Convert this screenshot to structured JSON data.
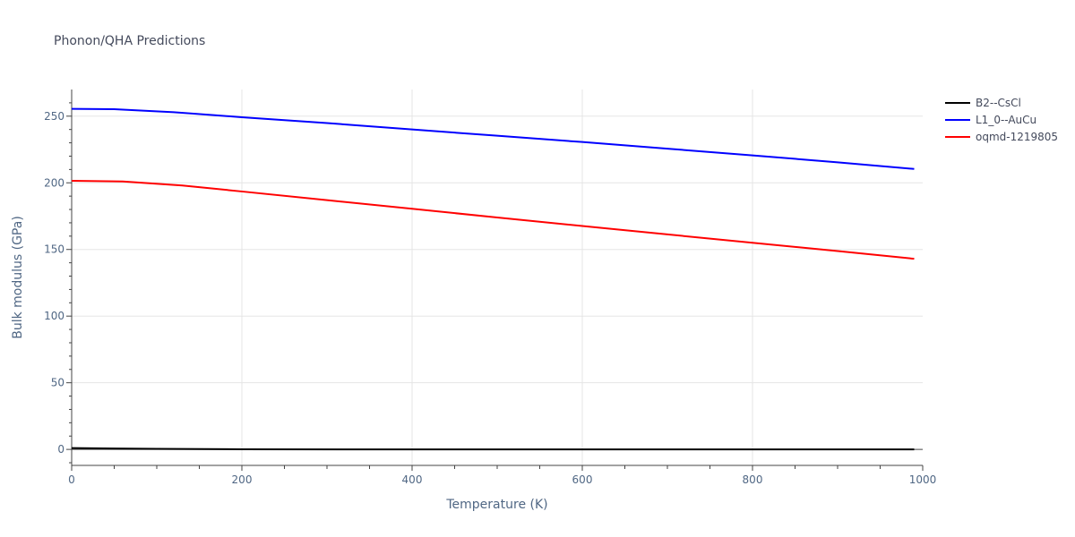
{
  "chart_data": {
    "type": "line",
    "title": "Phonon/QHA Predictions",
    "xlabel": "Temperature (K)",
    "ylabel": "Bulk modulus (GPa)",
    "xlim": [
      0,
      1000
    ],
    "ylim": [
      -12,
      270
    ],
    "xticks": [
      0,
      200,
      400,
      600,
      800,
      1000
    ],
    "yticks": [
      0,
      50,
      100,
      150,
      200,
      250
    ],
    "grid": true,
    "legend_position": "top-right",
    "series": [
      {
        "name": "B2--CsCl",
        "color": "#000000",
        "x": [
          0,
          50,
          100,
          200,
          400,
          600,
          800,
          990
        ],
        "y": [
          1.0,
          0.7,
          0.4,
          0.1,
          0.0,
          0.0,
          0.0,
          0.0
        ]
      },
      {
        "name": "L1_0--AuCu",
        "color": "#0000ff",
        "x": [
          0,
          50,
          120,
          200,
          300,
          400,
          500,
          600,
          700,
          800,
          900,
          990
        ],
        "y": [
          255.5,
          255.2,
          253.0,
          249.2,
          244.8,
          240.0,
          235.3,
          230.6,
          225.6,
          220.6,
          215.4,
          210.4
        ]
      },
      {
        "name": "oqmd-1219805",
        "color": "#ff0000",
        "x": [
          0,
          60,
          130,
          200,
          300,
          400,
          500,
          600,
          700,
          800,
          900,
          990
        ],
        "y": [
          201.5,
          201.0,
          198.0,
          193.5,
          187.0,
          180.5,
          174.0,
          167.6,
          161.3,
          155.0,
          148.8,
          143.0
        ]
      }
    ]
  }
}
